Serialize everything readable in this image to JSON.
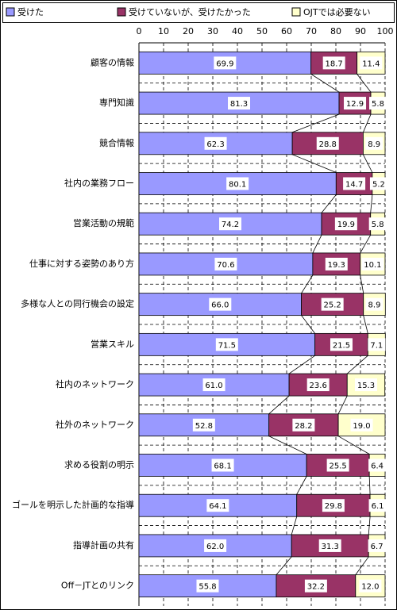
{
  "chart_data": {
    "type": "bar",
    "orientation": "horizontal",
    "stacked": true,
    "categories": [
      "顧客の情報",
      "専門知識",
      "競合情報",
      "社内の業務フロー",
      "営業活動の規範",
      "仕事に対する姿勢のあり方",
      "多様な人との同行機会の設定",
      "営業スキル",
      "社内のネットワーク",
      "社外のネットワーク",
      "求める役割の明示",
      "ゴールを明示した計画的な指導",
      "指導計画の共有",
      "Off－JTとのリンク"
    ],
    "series": [
      {
        "name": "受けた",
        "color": "#9999ff",
        "values": [
          69.9,
          81.3,
          62.3,
          80.1,
          74.2,
          70.6,
          66.0,
          71.5,
          61.0,
          52.8,
          68.1,
          64.1,
          62.0,
          55.8
        ],
        "value_labels": [
          "69.9",
          "81.3",
          "62.3",
          "80.1",
          "74.2",
          "70.6",
          "66.0",
          "71.5",
          "61.0",
          "52.8",
          "68.1",
          "64.1",
          "62.0",
          "55.8"
        ]
      },
      {
        "name": "受けていないが、受けたかった",
        "color": "#993366",
        "values": [
          18.7,
          12.9,
          28.8,
          14.7,
          19.9,
          19.3,
          25.2,
          21.5,
          23.6,
          28.2,
          25.5,
          29.8,
          31.3,
          32.2
        ],
        "value_labels": [
          "18.7",
          "12.9",
          "28.8",
          "14.7",
          "19.9",
          "19.3",
          "25.2",
          "21.5",
          "23.6",
          "28.2",
          "25.5",
          "29.8",
          "31.3",
          "32.2"
        ]
      },
      {
        "name": "OJTでは必要ない",
        "color": "#ffffcc",
        "values": [
          11.4,
          5.8,
          8.9,
          5.2,
          5.8,
          10.1,
          8.9,
          7.1,
          15.3,
          19.0,
          6.4,
          6.1,
          6.7,
          12.0
        ],
        "value_labels": [
          "11.4",
          "5.8",
          "8.9",
          "5.2",
          "5.8",
          "10.1",
          "8.9",
          "7.1",
          "15.3",
          "19.0",
          "6.4",
          "6.1",
          "6.7",
          "12.0"
        ]
      }
    ],
    "xlim": [
      0,
      100
    ],
    "xticks": [
      0,
      10,
      20,
      30,
      40,
      50,
      60,
      70,
      80,
      90,
      100
    ],
    "grid": true
  }
}
